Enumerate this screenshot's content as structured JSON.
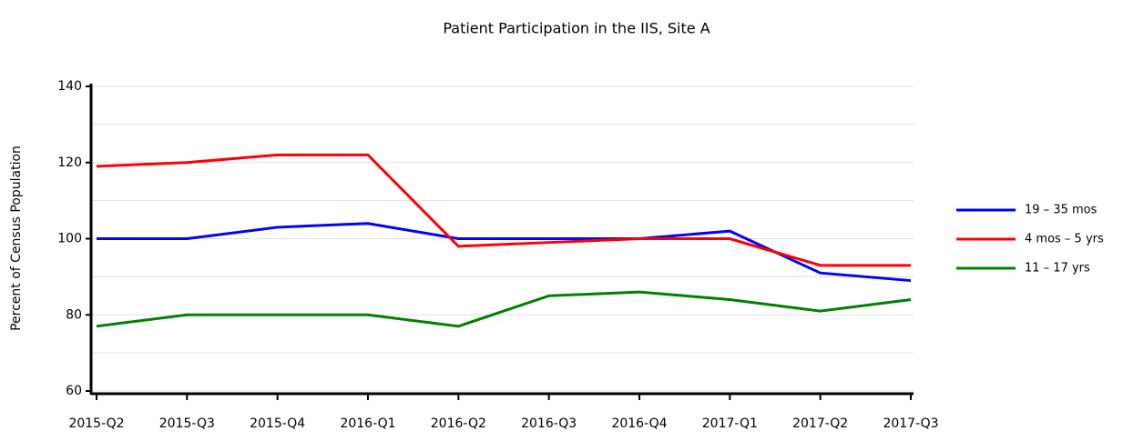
{
  "chart_data": {
    "type": "line",
    "title": "Patient Participation in the IIS, Site A",
    "ylabel": "Percent of Census Population",
    "categories": [
      "2015-Q2",
      "2015-Q3",
      "2015-Q4",
      "2016-Q1",
      "2016-Q2",
      "2016-Q3",
      "2016-Q4",
      "2017-Q1",
      "2017-Q2",
      "2017-Q3"
    ],
    "series": [
      {
        "name": "19 – 35 mos",
        "color": "#0000ff",
        "values": [
          100,
          100,
          103,
          104,
          100,
          100,
          100,
          102,
          91,
          89
        ]
      },
      {
        "name": "4 mos – 5 yrs",
        "color": "#ff0000",
        "values": [
          119,
          120,
          122,
          122,
          98,
          99,
          100,
          100,
          93,
          93
        ]
      },
      {
        "name": "11 – 17 yrs",
        "color": "#008000",
        "values": [
          77,
          80,
          80,
          80,
          77,
          85,
          86,
          84,
          81,
          84
        ]
      }
    ],
    "ylim": [
      60,
      140
    ],
    "yticks": [
      60,
      80,
      100,
      120,
      140
    ],
    "minor_yticks": [
      70,
      90,
      110,
      130
    ],
    "grid": true,
    "legend": "right"
  }
}
